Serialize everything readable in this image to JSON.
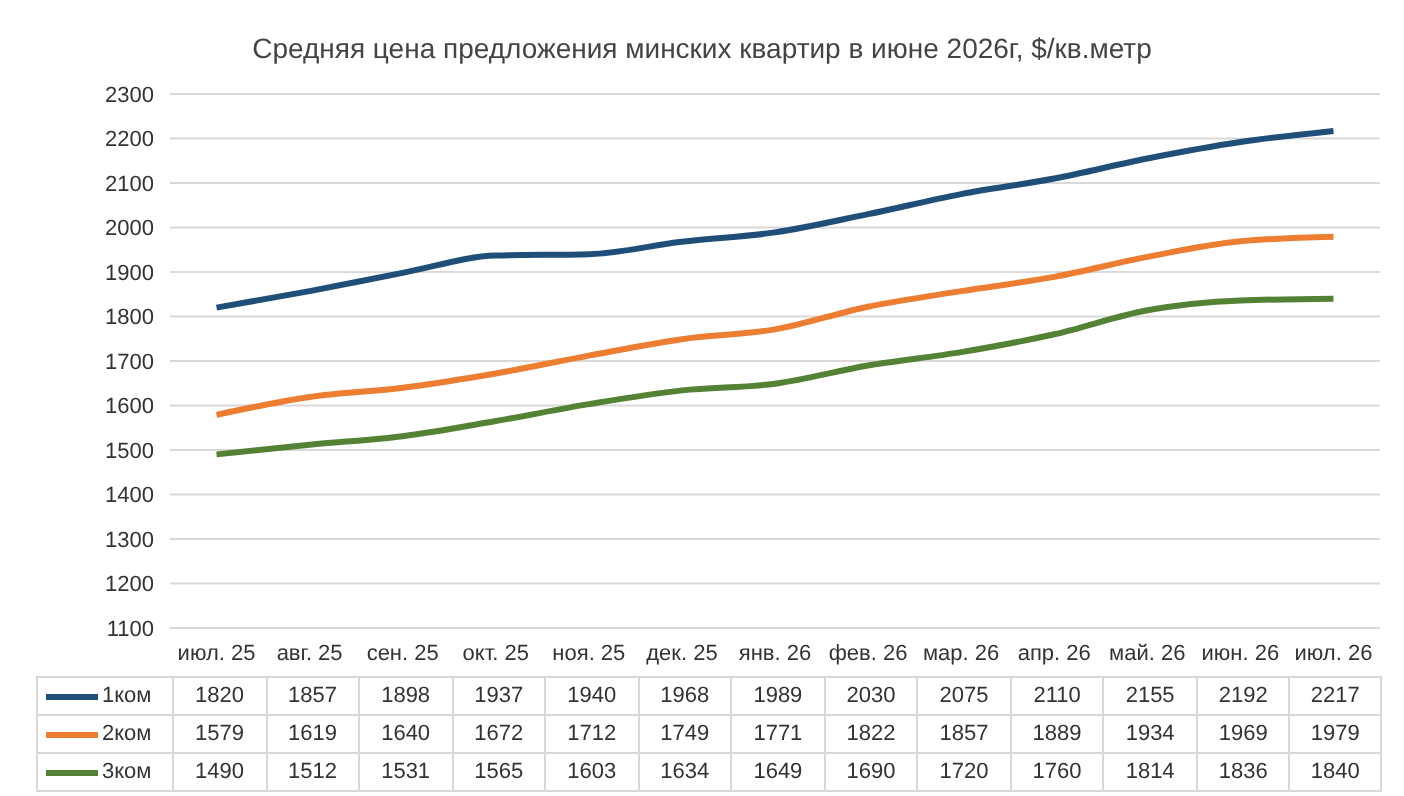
{
  "chart_data": {
    "type": "line",
    "title": "Средняя цена предложения минских квартир в июне 2026г, $/кв.метр",
    "categories": [
      "июл. 25",
      "авг. 25",
      "сен. 25",
      "окт. 25",
      "ноя. 25",
      "дек. 25",
      "янв. 26",
      "фев. 26",
      "мар. 26",
      "апр. 26",
      "май. 26",
      "июн. 26",
      "июл. 26"
    ],
    "series": [
      {
        "name": "1ком",
        "color": "#1f4e79",
        "values": [
          1820,
          1857,
          1898,
          1937,
          1940,
          1968,
          1989,
          2030,
          2075,
          2110,
          2155,
          2192,
          2217
        ]
      },
      {
        "name": "2ком",
        "color": "#ed7d31",
        "values": [
          1579,
          1619,
          1640,
          1672,
          1712,
          1749,
          1771,
          1822,
          1857,
          1889,
          1934,
          1969,
          1979
        ]
      },
      {
        "name": "3ком",
        "color": "#548235",
        "values": [
          1490,
          1512,
          1531,
          1565,
          1603,
          1634,
          1649,
          1690,
          1720,
          1760,
          1814,
          1836,
          1840
        ]
      }
    ],
    "ylim": [
      1100,
      2300
    ],
    "yticks": [
      1100,
      1200,
      1300,
      1400,
      1500,
      1600,
      1700,
      1800,
      1900,
      2000,
      2100,
      2200,
      2300
    ],
    "grid": "y",
    "legend": "bottom",
    "marker": "none",
    "data_labels": true
  }
}
